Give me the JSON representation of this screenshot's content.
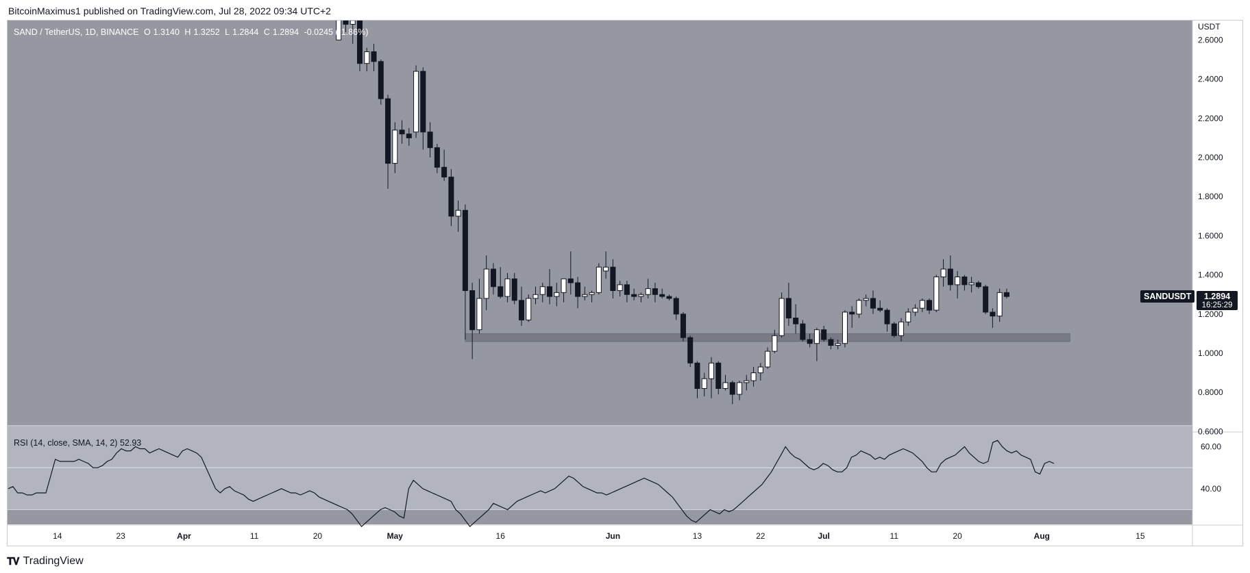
{
  "header": {
    "publisher": "BitcoinMaximus1 published on TradingView.com, Jul 28, 2022 09:34 UTC+2"
  },
  "legend": {
    "symbol": "SAND / TetherUS, 1D, BINANCE",
    "open_label": "O",
    "open": "1.3140",
    "high_label": "H",
    "high": "1.3252",
    "low_label": "L",
    "low": "1.2844",
    "close_label": "C",
    "close": "1.2894",
    "change": "-0.0245 (-1.86%)"
  },
  "price_axis": {
    "currency": "USDT",
    "ticks": [
      "2.6000",
      "2.4000",
      "2.2000",
      "2.0000",
      "1.8000",
      "1.6000",
      "1.4000",
      "1.2000",
      "1.0000",
      "0.8000",
      "0.6000"
    ]
  },
  "price_tags": {
    "symbol": "SANDUSDT",
    "last_price": "1.2894",
    "countdown": "16:25:29"
  },
  "rsi": {
    "legend": "RSI (14, close, SMA, 14, 2)",
    "value": "52.93",
    "ticks": [
      "60.00",
      "40.00"
    ]
  },
  "time_axis": {
    "ticks": [
      "14",
      "23",
      "Apr",
      "11",
      "20",
      "May",
      "16",
      "Jun",
      "13",
      "22",
      "Jul",
      "11",
      "20",
      "Aug",
      "15"
    ]
  },
  "footer": {
    "brand": "TradingView"
  },
  "colors": {
    "chart_bg": "#9598a1",
    "up_candle": "#ffffff",
    "down_candle": "#131722",
    "support_zone": "#787b86",
    "rsi_band": "#b2b5be",
    "rsi_outer": "#9598a1",
    "rsi_line": "#131722"
  },
  "chart_data": [
    {
      "type": "candlestick",
      "title": "SAND / TetherUS, 1D, BINANCE",
      "ylabel": "USDT",
      "ylim": [
        0.6,
        2.65
      ],
      "x_start_date": "2022-04-23",
      "support_zone": {
        "low": 1.06,
        "high": 1.1,
        "from": "2022-05-11",
        "to": "2022-08-05"
      },
      "candles": [
        {
          "date": "2022-04-23",
          "o": 2.6,
          "h": 2.75,
          "l": 2.6,
          "c": 2.72
        },
        {
          "date": "2022-04-24",
          "o": 2.72,
          "h": 2.8,
          "l": 2.64,
          "c": 2.68
        },
        {
          "date": "2022-04-25",
          "o": 2.68,
          "h": 2.75,
          "l": 2.58,
          "c": 2.7
        },
        {
          "date": "2022-04-26",
          "o": 2.7,
          "h": 2.71,
          "l": 2.44,
          "c": 2.48
        },
        {
          "date": "2022-04-27",
          "o": 2.48,
          "h": 2.56,
          "l": 2.44,
          "c": 2.54
        },
        {
          "date": "2022-04-28",
          "o": 2.54,
          "h": 2.58,
          "l": 2.44,
          "c": 2.49
        },
        {
          "date": "2022-04-29",
          "o": 2.49,
          "h": 2.5,
          "l": 2.27,
          "c": 2.3
        },
        {
          "date": "2022-04-30",
          "o": 2.3,
          "h": 2.32,
          "l": 1.84,
          "c": 1.97
        },
        {
          "date": "2022-05-01",
          "o": 1.97,
          "h": 2.18,
          "l": 1.92,
          "c": 2.14
        },
        {
          "date": "2022-05-02",
          "o": 2.14,
          "h": 2.19,
          "l": 2.07,
          "c": 2.12
        },
        {
          "date": "2022-05-03",
          "o": 2.12,
          "h": 2.15,
          "l": 2.06,
          "c": 2.1
        },
        {
          "date": "2022-05-04",
          "o": 2.13,
          "h": 2.47,
          "l": 2.1,
          "c": 2.44
        },
        {
          "date": "2022-05-05",
          "o": 2.44,
          "h": 2.46,
          "l": 2.04,
          "c": 2.13
        },
        {
          "date": "2022-05-06",
          "o": 2.13,
          "h": 2.18,
          "l": 2.0,
          "c": 2.05
        },
        {
          "date": "2022-05-07",
          "o": 2.05,
          "h": 2.07,
          "l": 1.92,
          "c": 1.95
        },
        {
          "date": "2022-05-08",
          "o": 1.95,
          "h": 2.04,
          "l": 1.88,
          "c": 1.9
        },
        {
          "date": "2022-05-09",
          "o": 1.9,
          "h": 1.94,
          "l": 1.65,
          "c": 1.7
        },
        {
          "date": "2022-05-10",
          "o": 1.7,
          "h": 1.78,
          "l": 1.62,
          "c": 1.73
        },
        {
          "date": "2022-05-11",
          "o": 1.73,
          "h": 1.76,
          "l": 1.07,
          "c": 1.32
        },
        {
          "date": "2022-05-12",
          "o": 1.32,
          "h": 1.36,
          "l": 0.97,
          "c": 1.12
        },
        {
          "date": "2022-05-13",
          "o": 1.12,
          "h": 1.38,
          "l": 1.1,
          "c": 1.28
        },
        {
          "date": "2022-05-14",
          "o": 1.28,
          "h": 1.5,
          "l": 1.22,
          "c": 1.43
        },
        {
          "date": "2022-05-15",
          "o": 1.43,
          "h": 1.46,
          "l": 1.3,
          "c": 1.34
        },
        {
          "date": "2022-05-16",
          "o": 1.34,
          "h": 1.44,
          "l": 1.28,
          "c": 1.29
        },
        {
          "date": "2022-05-17",
          "o": 1.29,
          "h": 1.41,
          "l": 1.26,
          "c": 1.38
        },
        {
          "date": "2022-05-18",
          "o": 1.38,
          "h": 1.41,
          "l": 1.25,
          "c": 1.27
        },
        {
          "date": "2022-05-19",
          "o": 1.27,
          "h": 1.34,
          "l": 1.14,
          "c": 1.17
        },
        {
          "date": "2022-05-20",
          "o": 1.17,
          "h": 1.3,
          "l": 1.16,
          "c": 1.28
        },
        {
          "date": "2022-05-21",
          "o": 1.28,
          "h": 1.34,
          "l": 1.25,
          "c": 1.3
        },
        {
          "date": "2022-05-22",
          "o": 1.3,
          "h": 1.36,
          "l": 1.26,
          "c": 1.34
        },
        {
          "date": "2022-05-23",
          "o": 1.34,
          "h": 1.43,
          "l": 1.25,
          "c": 1.29
        },
        {
          "date": "2022-05-24",
          "o": 1.29,
          "h": 1.36,
          "l": 1.24,
          "c": 1.31
        },
        {
          "date": "2022-05-25",
          "o": 1.31,
          "h": 1.38,
          "l": 1.26,
          "c": 1.38
        },
        {
          "date": "2022-05-26",
          "o": 1.38,
          "h": 1.52,
          "l": 1.3,
          "c": 1.36
        },
        {
          "date": "2022-05-27",
          "o": 1.36,
          "h": 1.39,
          "l": 1.23,
          "c": 1.29
        },
        {
          "date": "2022-05-28",
          "o": 1.29,
          "h": 1.34,
          "l": 1.27,
          "c": 1.3
        },
        {
          "date": "2022-05-29",
          "o": 1.3,
          "h": 1.32,
          "l": 1.26,
          "c": 1.31
        },
        {
          "date": "2022-05-30",
          "o": 1.31,
          "h": 1.46,
          "l": 1.3,
          "c": 1.44
        },
        {
          "date": "2022-05-31",
          "o": 1.42,
          "h": 1.52,
          "l": 1.38,
          "c": 1.44
        },
        {
          "date": "2022-06-01",
          "o": 1.44,
          "h": 1.48,
          "l": 1.28,
          "c": 1.32
        },
        {
          "date": "2022-06-02",
          "o": 1.32,
          "h": 1.37,
          "l": 1.29,
          "c": 1.35
        },
        {
          "date": "2022-06-03",
          "o": 1.35,
          "h": 1.37,
          "l": 1.26,
          "c": 1.3
        },
        {
          "date": "2022-06-04",
          "o": 1.3,
          "h": 1.33,
          "l": 1.27,
          "c": 1.29
        },
        {
          "date": "2022-06-05",
          "o": 1.29,
          "h": 1.31,
          "l": 1.26,
          "c": 1.3
        },
        {
          "date": "2022-06-06",
          "o": 1.3,
          "h": 1.38,
          "l": 1.28,
          "c": 1.33
        },
        {
          "date": "2022-06-07",
          "o": 1.33,
          "h": 1.36,
          "l": 1.26,
          "c": 1.3
        },
        {
          "date": "2022-06-08",
          "o": 1.3,
          "h": 1.33,
          "l": 1.28,
          "c": 1.29
        },
        {
          "date": "2022-06-09",
          "o": 1.29,
          "h": 1.3,
          "l": 1.27,
          "c": 1.28
        },
        {
          "date": "2022-06-10",
          "o": 1.28,
          "h": 1.29,
          "l": 1.17,
          "c": 1.2
        },
        {
          "date": "2022-06-11",
          "o": 1.2,
          "h": 1.21,
          "l": 1.06,
          "c": 1.08
        },
        {
          "date": "2022-06-12",
          "o": 1.08,
          "h": 1.09,
          "l": 0.93,
          "c": 0.95
        },
        {
          "date": "2022-06-13",
          "o": 0.95,
          "h": 0.96,
          "l": 0.77,
          "c": 0.82
        },
        {
          "date": "2022-06-14",
          "o": 0.82,
          "h": 0.9,
          "l": 0.78,
          "c": 0.87
        },
        {
          "date": "2022-06-15",
          "o": 0.87,
          "h": 0.98,
          "l": 0.77,
          "c": 0.95
        },
        {
          "date": "2022-06-16",
          "o": 0.95,
          "h": 0.96,
          "l": 0.79,
          "c": 0.82
        },
        {
          "date": "2022-06-17",
          "o": 0.82,
          "h": 0.89,
          "l": 0.81,
          "c": 0.85
        },
        {
          "date": "2022-06-18",
          "o": 0.85,
          "h": 0.86,
          "l": 0.74,
          "c": 0.79
        },
        {
          "date": "2022-06-19",
          "o": 0.79,
          "h": 0.86,
          "l": 0.76,
          "c": 0.85
        },
        {
          "date": "2022-06-20",
          "o": 0.85,
          "h": 0.89,
          "l": 0.81,
          "c": 0.86
        },
        {
          "date": "2022-06-21",
          "o": 0.86,
          "h": 0.93,
          "l": 0.83,
          "c": 0.9
        },
        {
          "date": "2022-06-22",
          "o": 0.9,
          "h": 0.95,
          "l": 0.86,
          "c": 0.93
        },
        {
          "date": "2022-06-23",
          "o": 0.93,
          "h": 1.03,
          "l": 0.92,
          "c": 1.01
        },
        {
          "date": "2022-06-24",
          "o": 1.01,
          "h": 1.12,
          "l": 1.0,
          "c": 1.09
        },
        {
          "date": "2022-06-25",
          "o": 1.09,
          "h": 1.31,
          "l": 1.08,
          "c": 1.28
        },
        {
          "date": "2022-06-26",
          "o": 1.28,
          "h": 1.36,
          "l": 1.14,
          "c": 1.18
        },
        {
          "date": "2022-06-27",
          "o": 1.18,
          "h": 1.25,
          "l": 1.1,
          "c": 1.15
        },
        {
          "date": "2022-06-28",
          "o": 1.15,
          "h": 1.17,
          "l": 1.06,
          "c": 1.07
        },
        {
          "date": "2022-06-29",
          "o": 1.07,
          "h": 1.1,
          "l": 1.03,
          "c": 1.05
        },
        {
          "date": "2022-06-30",
          "o": 1.05,
          "h": 1.13,
          "l": 0.96,
          "c": 1.12
        },
        {
          "date": "2022-07-01",
          "o": 1.12,
          "h": 1.14,
          "l": 1.06,
          "c": 1.07
        },
        {
          "date": "2022-07-02",
          "o": 1.07,
          "h": 1.08,
          "l": 1.02,
          "c": 1.04
        },
        {
          "date": "2022-07-03",
          "o": 1.04,
          "h": 1.07,
          "l": 1.02,
          "c": 1.05
        },
        {
          "date": "2022-07-04",
          "o": 1.05,
          "h": 1.22,
          "l": 1.03,
          "c": 1.21
        },
        {
          "date": "2022-07-05",
          "o": 1.21,
          "h": 1.24,
          "l": 1.13,
          "c": 1.2
        },
        {
          "date": "2022-07-06",
          "o": 1.2,
          "h": 1.28,
          "l": 1.18,
          "c": 1.27
        },
        {
          "date": "2022-07-07",
          "o": 1.27,
          "h": 1.3,
          "l": 1.24,
          "c": 1.28
        },
        {
          "date": "2022-07-08",
          "o": 1.28,
          "h": 1.32,
          "l": 1.2,
          "c": 1.23
        },
        {
          "date": "2022-07-09",
          "o": 1.23,
          "h": 1.27,
          "l": 1.21,
          "c": 1.22
        },
        {
          "date": "2022-07-10",
          "o": 1.22,
          "h": 1.23,
          "l": 1.11,
          "c": 1.15
        },
        {
          "date": "2022-07-11",
          "o": 1.15,
          "h": 1.16,
          "l": 1.08,
          "c": 1.09
        },
        {
          "date": "2022-07-12",
          "o": 1.09,
          "h": 1.18,
          "l": 1.06,
          "c": 1.16
        },
        {
          "date": "2022-07-13",
          "o": 1.16,
          "h": 1.23,
          "l": 1.14,
          "c": 1.21
        },
        {
          "date": "2022-07-14",
          "o": 1.21,
          "h": 1.25,
          "l": 1.19,
          "c": 1.23
        },
        {
          "date": "2022-07-15",
          "o": 1.23,
          "h": 1.28,
          "l": 1.21,
          "c": 1.27
        },
        {
          "date": "2022-07-16",
          "o": 1.27,
          "h": 1.28,
          "l": 1.2,
          "c": 1.22
        },
        {
          "date": "2022-07-17",
          "o": 1.22,
          "h": 1.4,
          "l": 1.21,
          "c": 1.39
        },
        {
          "date": "2022-07-18",
          "o": 1.39,
          "h": 1.48,
          "l": 1.34,
          "c": 1.43
        },
        {
          "date": "2022-07-19",
          "o": 1.43,
          "h": 1.5,
          "l": 1.32,
          "c": 1.35
        },
        {
          "date": "2022-07-20",
          "o": 1.35,
          "h": 1.42,
          "l": 1.28,
          "c": 1.39
        },
        {
          "date": "2022-07-21",
          "o": 1.39,
          "h": 1.4,
          "l": 1.32,
          "c": 1.35
        },
        {
          "date": "2022-07-22",
          "o": 1.35,
          "h": 1.39,
          "l": 1.31,
          "c": 1.36
        },
        {
          "date": "2022-07-23",
          "o": 1.36,
          "h": 1.37,
          "l": 1.33,
          "c": 1.34
        },
        {
          "date": "2022-07-24",
          "o": 1.34,
          "h": 1.35,
          "l": 1.2,
          "c": 1.21
        },
        {
          "date": "2022-07-25",
          "o": 1.21,
          "h": 1.23,
          "l": 1.13,
          "c": 1.19
        },
        {
          "date": "2022-07-26",
          "o": 1.19,
          "h": 1.33,
          "l": 1.16,
          "c": 1.31
        },
        {
          "date": "2022-07-27",
          "o": 1.31,
          "h": 1.33,
          "l": 1.28,
          "c": 1.29
        }
      ]
    },
    {
      "type": "line",
      "title": "RSI (14, close, SMA, 14, 2)",
      "ylim": [
        23,
        67
      ],
      "band": [
        30,
        70
      ],
      "midline": 50,
      "x_start_date": "2022-03-07",
      "y": [
        40,
        41,
        38,
        38,
        37,
        37,
        38,
        38,
        38,
        46,
        54,
        53,
        53,
        53,
        53,
        54,
        53,
        52,
        50,
        50,
        51,
        53,
        54,
        57,
        59,
        58,
        58,
        60,
        59,
        59,
        57,
        58,
        59,
        58,
        57,
        56,
        55,
        58,
        59,
        58,
        57,
        55,
        50,
        45,
        40,
        38,
        40,
        41,
        39,
        38,
        37,
        35,
        34,
        35,
        36,
        37,
        38,
        39,
        40,
        39,
        38,
        38,
        37,
        38,
        39,
        38,
        36,
        35,
        34,
        33,
        32,
        31,
        30,
        28,
        25,
        22,
        24,
        26,
        28,
        30,
        31,
        30,
        29,
        27,
        26,
        40,
        44,
        42,
        40,
        39,
        38,
        37,
        36,
        35,
        34,
        30,
        28,
        25,
        22,
        24,
        26,
        28,
        30,
        33,
        32,
        31,
        30,
        32,
        34,
        35,
        36,
        37,
        38,
        39,
        38,
        39,
        40,
        42,
        44,
        46,
        45,
        43,
        41,
        40,
        39,
        38,
        38,
        37,
        38,
        39,
        40,
        41,
        42,
        43,
        44,
        45,
        44,
        43,
        42,
        40,
        38,
        36,
        33,
        30,
        27,
        25,
        24,
        26,
        28,
        30,
        29,
        28,
        30,
        29,
        30,
        32,
        34,
        36,
        38,
        40,
        42,
        45,
        48,
        52,
        56,
        60,
        57,
        55,
        54,
        52,
        50,
        49,
        50,
        52,
        51,
        49,
        48,
        48,
        50,
        55,
        56,
        58,
        57,
        56,
        54,
        55,
        54,
        56,
        57,
        58,
        59,
        58,
        57,
        55,
        53,
        50,
        48,
        48,
        52,
        54,
        55,
        56,
        58,
        60,
        57,
        55,
        53,
        52,
        53,
        62,
        63,
        60,
        58,
        57,
        58,
        56,
        55,
        54,
        48,
        47,
        52,
        53,
        52
      ]
    }
  ]
}
